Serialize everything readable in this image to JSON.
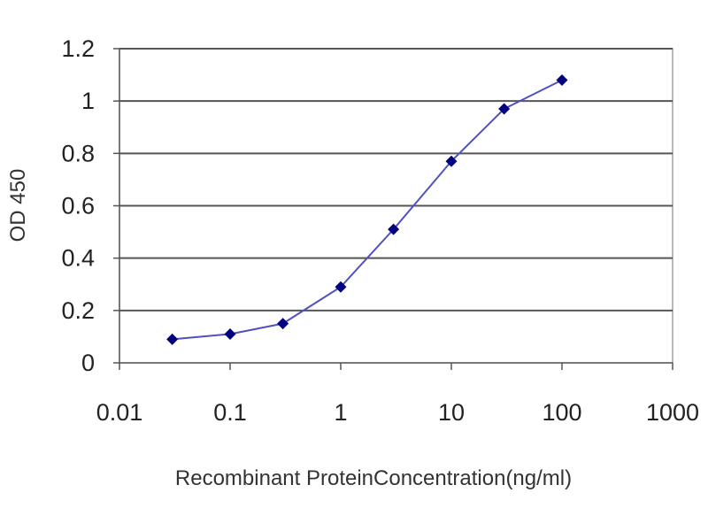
{
  "chart_data": {
    "type": "line",
    "xscale": "log",
    "xlim": [
      0.01,
      1000
    ],
    "ylim": [
      0,
      1.2
    ],
    "xticks": [
      "0.01",
      "0.1",
      "1",
      "10",
      "100",
      "1000"
    ],
    "yticks": [
      "0",
      "0.2",
      "0.4",
      "0.6",
      "0.8",
      "1",
      "1.2"
    ],
    "xlabel": "Recombinant ProteinConcentration(ng/ml)",
    "ylabel": "OD 450",
    "grid": "horizontal",
    "series": [
      {
        "color": "#000080",
        "marker": "diamond",
        "x": [
          0.03,
          0.1,
          0.3,
          1,
          3,
          10,
          30,
          100
        ],
        "y": [
          0.09,
          0.11,
          0.15,
          0.29,
          0.51,
          0.77,
          0.97,
          1.08
        ]
      }
    ],
    "colors": {
      "plot_background": "#ffffff",
      "grid": "#555555",
      "line": "#5050c0",
      "marker": "#000080"
    }
  }
}
